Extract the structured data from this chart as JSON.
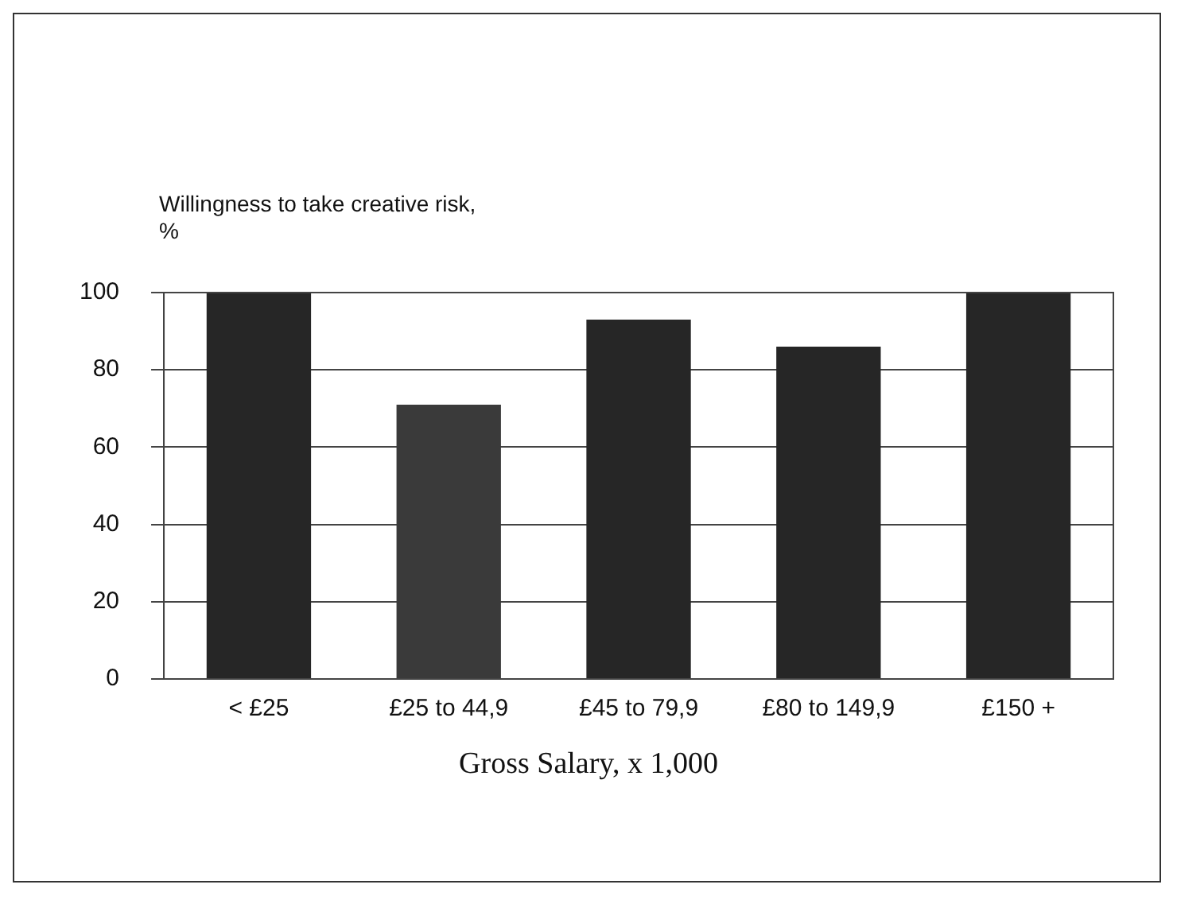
{
  "chart_data": {
    "type": "bar",
    "ylabel": "Willingness to take creative risk, %",
    "xlabel": "Gross Salary, x 1,000",
    "categories": [
      "< £25",
      "£25 to 44,9",
      "£45 to 79,9",
      "£80 to 149,9",
      "£150 +"
    ],
    "values": [
      100,
      71,
      93,
      86,
      100
    ],
    "colors": [
      "#262626",
      "#3a3a3a",
      "#262626",
      "#262626",
      "#262626"
    ],
    "ylim": [
      0,
      100
    ],
    "yticks": [
      0,
      20,
      40,
      60,
      80,
      100
    ],
    "grid": "y",
    "legend": false
  }
}
